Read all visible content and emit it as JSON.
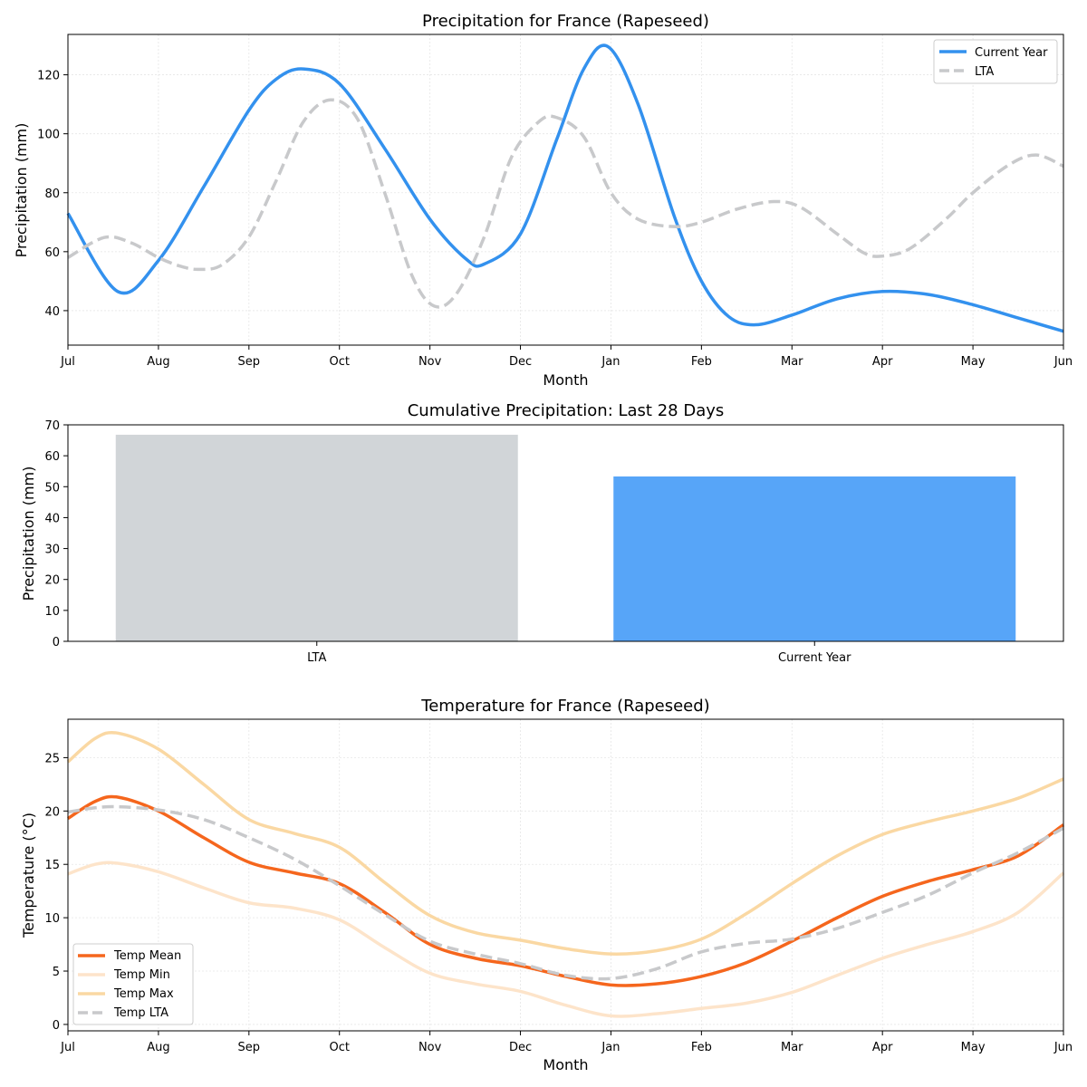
{
  "colors": {
    "current": "#3391ee",
    "lta": "#c8c9cb",
    "bar_lta": "#d1d5d8",
    "bar_current": "#57a5f8",
    "temp_mean": "#f5661d",
    "temp_min": "#fde4ca",
    "temp_max": "#fad8a3",
    "temp_lta": "#c8c9cb",
    "grid": "#e6e6e6"
  },
  "chart_data": [
    {
      "type": "line",
      "title": "Precipitation for France (Rapeseed)",
      "xlabel": "Month",
      "ylabel": "Precipitation (mm)",
      "categories": [
        "Jul",
        "Aug",
        "Sep",
        "Oct",
        "Nov",
        "Dec",
        "Jan",
        "Feb",
        "Mar",
        "Apr",
        "May",
        "Jun"
      ],
      "xlim": [
        0,
        11
      ],
      "ylim": [
        28.3,
        133.7
      ],
      "yticks": [
        40,
        60,
        80,
        100,
        120
      ],
      "grid": true,
      "legend_position": "top-right",
      "series": [
        {
          "name": "Current Year",
          "style": "solid",
          "color_key": "current",
          "points": [
            [
              0,
              73
            ],
            [
              0.55,
              46.5
            ],
            [
              1,
              57
            ],
            [
              1.5,
              82
            ],
            [
              2,
              108
            ],
            [
              2.3,
              118.5
            ],
            [
              2.6,
              122
            ],
            [
              3,
              117
            ],
            [
              3.5,
              95
            ],
            [
              4,
              71
            ],
            [
              4.4,
              57.5
            ],
            [
              4.6,
              55.8
            ],
            [
              5,
              66
            ],
            [
              5.4,
              98
            ],
            [
              5.7,
              122
            ],
            [
              5.97,
              129.5
            ],
            [
              6.3,
              110
            ],
            [
              6.7,
              72
            ],
            [
              7,
              50
            ],
            [
              7.3,
              38
            ],
            [
              7.6,
              35.2
            ],
            [
              8,
              38.5
            ],
            [
              8.5,
              44
            ],
            [
              9,
              46.5
            ],
            [
              9.5,
              45.5
            ],
            [
              10,
              42
            ],
            [
              10.5,
              37.5
            ],
            [
              11,
              33
            ]
          ]
        },
        {
          "name": "LTA",
          "style": "dashed",
          "color_key": "lta",
          "points": [
            [
              0,
              58
            ],
            [
              0.4,
              64.8
            ],
            [
              0.7,
              63
            ],
            [
              1,
              58
            ],
            [
              1.25,
              55
            ],
            [
              1.45,
              54
            ],
            [
              1.7,
              55.5
            ],
            [
              2,
              65
            ],
            [
              2.3,
              84
            ],
            [
              2.6,
              104
            ],
            [
              2.9,
              111.5
            ],
            [
              3.2,
              105
            ],
            [
              3.5,
              80
            ],
            [
              3.8,
              52
            ],
            [
              4.05,
              41.5
            ],
            [
              4.3,
              46
            ],
            [
              4.6,
              65
            ],
            [
              4.9,
              92
            ],
            [
              5.2,
              104
            ],
            [
              5.4,
              105.5
            ],
            [
              5.7,
              99
            ],
            [
              6,
              80
            ],
            [
              6.3,
              71
            ],
            [
              6.7,
              68.5
            ],
            [
              7,
              70
            ],
            [
              7.4,
              74.5
            ],
            [
              7.8,
              77
            ],
            [
              8.1,
              75
            ],
            [
              8.5,
              66
            ],
            [
              8.8,
              59.5
            ],
            [
              9,
              58.5
            ],
            [
              9.3,
              61
            ],
            [
              9.7,
              71
            ],
            [
              10,
              80
            ],
            [
              10.4,
              89.5
            ],
            [
              10.7,
              92.8
            ],
            [
              11,
              89
            ]
          ]
        }
      ]
    },
    {
      "type": "bar",
      "title": "Cumulative Precipitation: Last 28 Days",
      "xlabel": "",
      "ylabel": "Precipitation (mm)",
      "categories": [
        "LTA",
        "Current Year"
      ],
      "values": [
        66.8,
        53.3
      ],
      "color_keys": [
        "bar_lta",
        "bar_current"
      ],
      "ylim": [
        0,
        70
      ],
      "yticks": [
        0,
        10,
        20,
        30,
        40,
        50,
        60,
        70
      ],
      "grid": false
    },
    {
      "type": "line",
      "title": "Temperature for France (Rapeseed)",
      "xlabel": "Month",
      "ylabel": "Temperature (°C)",
      "categories": [
        "Jul",
        "Aug",
        "Sep",
        "Oct",
        "Nov",
        "Dec",
        "Jan",
        "Feb",
        "Mar",
        "Apr",
        "May",
        "Jun"
      ],
      "xlim": [
        0,
        11
      ],
      "ylim": [
        -0.6,
        28.6
      ],
      "yticks": [
        0,
        5,
        10,
        15,
        20,
        25
      ],
      "grid": true,
      "legend_position": "bottom-left",
      "series": [
        {
          "name": "Temp Mean",
          "style": "solid",
          "color_key": "temp_mean",
          "points": [
            [
              0,
              19.3
            ],
            [
              0.3,
              20.9
            ],
            [
              0.55,
              21.3
            ],
            [
              1,
              20
            ],
            [
              1.5,
              17.5
            ],
            [
              2,
              15.2
            ],
            [
              2.5,
              14.2
            ],
            [
              3,
              13.2
            ],
            [
              3.5,
              10.5
            ],
            [
              4,
              7.5
            ],
            [
              4.5,
              6.2
            ],
            [
              5,
              5.5
            ],
            [
              5.5,
              4.5
            ],
            [
              6,
              3.7
            ],
            [
              6.5,
              3.8
            ],
            [
              7,
              4.5
            ],
            [
              7.5,
              5.8
            ],
            [
              8,
              7.8
            ],
            [
              8.5,
              10
            ],
            [
              9,
              12
            ],
            [
              9.5,
              13.4
            ],
            [
              10,
              14.5
            ],
            [
              10.5,
              15.8
            ],
            [
              11,
              18.7
            ]
          ]
        },
        {
          "name": "Temp Min",
          "style": "solid",
          "color_key": "temp_min",
          "points": [
            [
              0,
              14.1
            ],
            [
              0.3,
              15
            ],
            [
              0.55,
              15.1
            ],
            [
              1,
              14.3
            ],
            [
              1.5,
              12.8
            ],
            [
              2,
              11.4
            ],
            [
              2.5,
              10.9
            ],
            [
              3,
              9.8
            ],
            [
              3.5,
              7.2
            ],
            [
              4,
              4.8
            ],
            [
              4.5,
              3.8
            ],
            [
              5,
              3.1
            ],
            [
              5.5,
              1.8
            ],
            [
              6,
              0.8
            ],
            [
              6.5,
              1
            ],
            [
              7,
              1.5
            ],
            [
              7.5,
              2
            ],
            [
              8,
              3
            ],
            [
              8.5,
              4.6
            ],
            [
              9,
              6.2
            ],
            [
              9.5,
              7.5
            ],
            [
              10,
              8.7
            ],
            [
              10.5,
              10.5
            ],
            [
              11,
              14.2
            ]
          ]
        },
        {
          "name": "Temp Max",
          "style": "solid",
          "color_key": "temp_max",
          "points": [
            [
              0,
              24.6
            ],
            [
              0.3,
              26.8
            ],
            [
              0.55,
              27.3
            ],
            [
              1,
              25.8
            ],
            [
              1.5,
              22.5
            ],
            [
              2,
              19.2
            ],
            [
              2.5,
              17.9
            ],
            [
              3,
              16.6
            ],
            [
              3.5,
              13.3
            ],
            [
              4,
              10.2
            ],
            [
              4.5,
              8.6
            ],
            [
              5,
              7.9
            ],
            [
              5.5,
              7.1
            ],
            [
              6,
              6.6
            ],
            [
              6.5,
              6.9
            ],
            [
              7,
              8
            ],
            [
              7.5,
              10.4
            ],
            [
              8,
              13.2
            ],
            [
              8.5,
              15.8
            ],
            [
              9,
              17.8
            ],
            [
              9.5,
              19
            ],
            [
              10,
              20
            ],
            [
              10.5,
              21.2
            ],
            [
              11,
              23
            ]
          ]
        },
        {
          "name": "Temp LTA",
          "style": "dashed",
          "color_key": "temp_lta",
          "points": [
            [
              0,
              19.9
            ],
            [
              0.3,
              20.3
            ],
            [
              0.55,
              20.4
            ],
            [
              1,
              20.1
            ],
            [
              1.5,
              19.2
            ],
            [
              2,
              17.5
            ],
            [
              2.5,
              15.5
            ],
            [
              3,
              13
            ],
            [
              3.5,
              10.3
            ],
            [
              4,
              7.8
            ],
            [
              4.5,
              6.6
            ],
            [
              5,
              5.7
            ],
            [
              5.5,
              4.6
            ],
            [
              6,
              4.3
            ],
            [
              6.5,
              5.2
            ],
            [
              7,
              6.8
            ],
            [
              7.5,
              7.6
            ],
            [
              8,
              8
            ],
            [
              8.5,
              9
            ],
            [
              9,
              10.5
            ],
            [
              9.5,
              12.1
            ],
            [
              10,
              14.2
            ],
            [
              10.5,
              16.1
            ],
            [
              11,
              18.4
            ]
          ]
        }
      ]
    }
  ]
}
